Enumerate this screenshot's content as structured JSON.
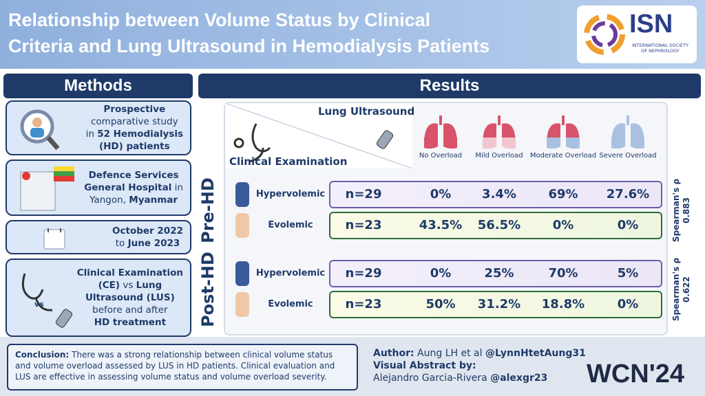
{
  "header": {
    "title": [
      "Relationship between Volume Status by Clinical",
      "Criteria and Lung Ultrasound in Hemodialysis Patients"
    ],
    "logo": {
      "name": "ISN",
      "subtitle": [
        "INTERNATIONAL SOCIETY",
        "OF NEPHROLOGY"
      ]
    }
  },
  "methods": {
    "heading": "Methods",
    "items": [
      {
        "lines": [
          [
            {
              "text": "Prospective",
              "bold": true
            }
          ],
          [
            {
              "text": "comparative study",
              "bold": false
            }
          ],
          [
            {
              "text": "in ",
              "bold": false
            },
            {
              "text": "52 Hemodialysis",
              "bold": true
            }
          ],
          [
            {
              "text": "(HD) patients",
              "bold": true
            }
          ]
        ]
      },
      {
        "lines": [
          [
            {
              "text": "Defence Services",
              "bold": true
            }
          ],
          [
            {
              "text": "General Hospital",
              "bold": true
            },
            {
              "text": " in",
              "bold": false
            }
          ],
          [
            {
              "text": "Yangon, ",
              "bold": false
            },
            {
              "text": "Myanmar",
              "bold": true
            }
          ]
        ]
      },
      {
        "lines": [
          [
            {
              "text": "October 2022",
              "bold": true
            }
          ],
          [
            {
              "text": "to ",
              "bold": false
            },
            {
              "text": "June 2023",
              "bold": true
            }
          ]
        ]
      },
      {
        "lines": [
          [
            {
              "text": "Clinical Examination",
              "bold": true
            }
          ],
          [
            {
              "text": "(CE)",
              "bold": true
            },
            {
              "text": " vs ",
              "bold": false
            },
            {
              "text": "Lung",
              "bold": true
            }
          ],
          [
            {
              "text": "Ultrasound (LUS)",
              "bold": true
            }
          ],
          [
            {
              "text": "before and after",
              "bold": false
            }
          ],
          [
            {
              "text": "HD treatment",
              "bold": true
            }
          ]
        ]
      }
    ],
    "vs": "vs"
  },
  "results": {
    "heading": "Results",
    "lung_ultrasound": "Lung Ultrasound",
    "clinical_examination": "Clinical Examination",
    "columns": [
      "No Overload",
      "Mild Overload",
      "Moderate Overload",
      "Severe Overload"
    ],
    "groups": [
      {
        "name": "Pre-HD",
        "stat": [
          "Spearman's ρ",
          "0.883"
        ],
        "rows": [
          {
            "label": "Hypervolemic",
            "n": "n=29",
            "values": [
              "0%",
              "3.4%",
              "69%",
              "27.6%"
            ]
          },
          {
            "label": "Evolemic",
            "n": "n=23",
            "values": [
              "43.5%",
              "56.5%",
              "0%",
              "0%"
            ]
          }
        ]
      },
      {
        "name": "Post-HD",
        "stat": [
          "Spearman's ρ",
          "0.622"
        ],
        "rows": [
          {
            "label": "Hypervolemic",
            "n": "n=29",
            "values": [
              "0%",
              "25%",
              "70%",
              "5%"
            ]
          },
          {
            "label": "Evolemic",
            "n": "n=23",
            "values": [
              "50%",
              "31.2%",
              "18.8%",
              "0%"
            ]
          }
        ]
      }
    ]
  },
  "footer": {
    "conclusion": [
      {
        "text": "Conclusion:",
        "bold": true
      },
      {
        "text": " There was a strong relationship between clinical volume status and volume overload assessed by LUS in HD patients. Clinical evaluation and LUS are effective in assessing volume status and volume overload severity.",
        "bold": false
      }
    ],
    "credits": [
      [
        {
          "text": "Author:",
          "bold": true
        },
        {
          "text": " Aung LH et al ",
          "bold": false
        },
        {
          "text": "@LynnHtetAung31",
          "bold": true
        }
      ],
      [
        {
          "text": "Visual Abstract by:",
          "bold": true
        }
      ],
      [
        {
          "text": "Alejandro Garcia-Rivera ",
          "bold": false
        },
        {
          "text": "@alexgr23",
          "bold": true
        }
      ]
    ],
    "event": "WCN'24"
  }
}
